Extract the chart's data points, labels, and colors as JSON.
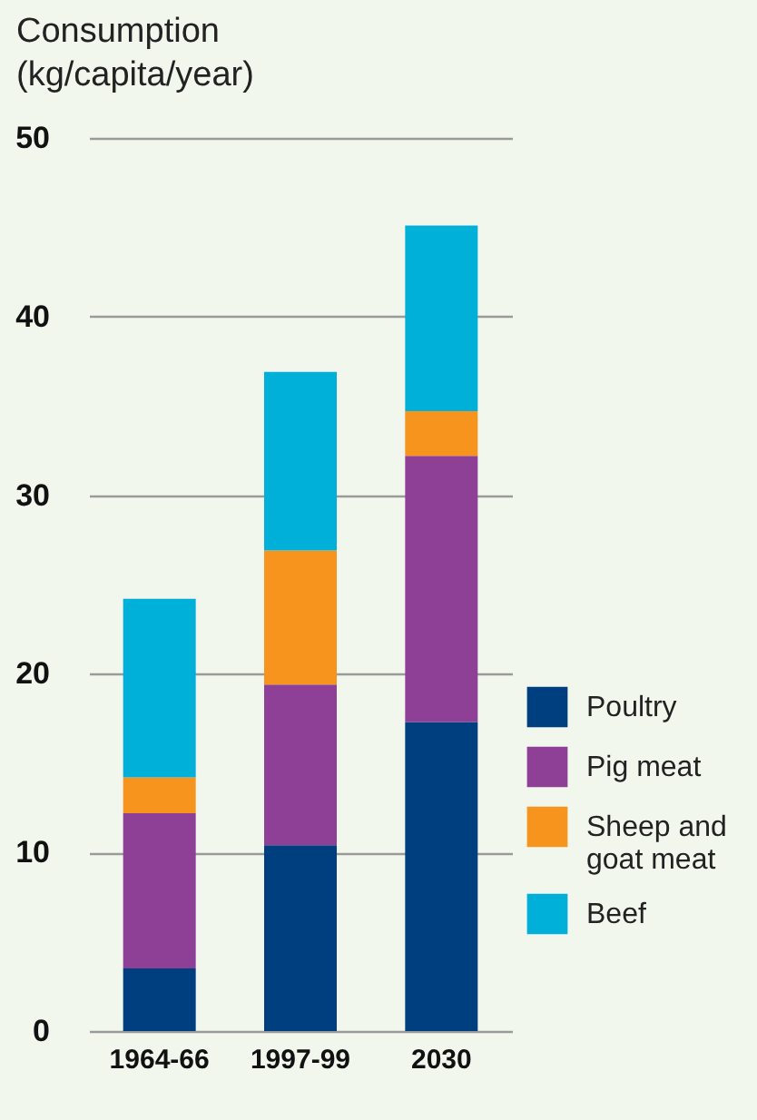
{
  "chart_data": {
    "type": "bar",
    "ylabel": "Consumption\n(kg/capita/year)",
    "categories": [
      "1964-66",
      "1997-99",
      "2030"
    ],
    "stacked": true,
    "series": [
      {
        "name": "Poultry",
        "color": "#003f7f",
        "values": [
          3.5,
          10.4,
          17.3
        ]
      },
      {
        "name": "Pig meat",
        "color": "#8e3f96",
        "values": [
          8.7,
          9.0,
          14.9
        ]
      },
      {
        "name": "Sheep and goat meat",
        "color": "#f7941d",
        "values": [
          2.0,
          7.5,
          2.5
        ]
      },
      {
        "name": "Beef",
        "color": "#00b0d8",
        "values": [
          10.0,
          10.0,
          10.4
        ]
      }
    ],
    "ylim": [
      0,
      50
    ],
    "yticks": [
      0,
      10,
      20,
      30,
      40,
      50
    ],
    "grid": "y",
    "legend": "bottom right"
  }
}
